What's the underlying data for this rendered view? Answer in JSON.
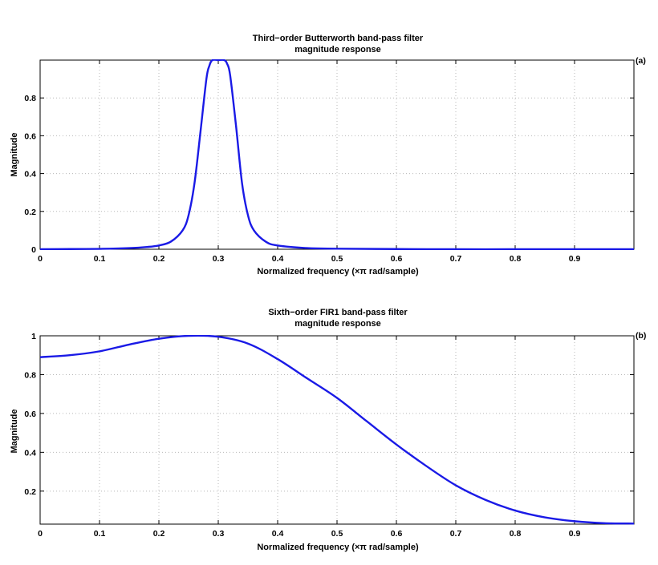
{
  "chart_data": [
    {
      "type": "line",
      "title_lines": [
        "Third−order Butterworth band-pass filter",
        "magnitude response"
      ],
      "tag": "(a)",
      "xlabel": "Normalized frequency  (×π rad/sample)",
      "ylabel": "Magnitude",
      "xlim": [
        0,
        1
      ],
      "ylim": [
        0,
        1
      ],
      "xticks": [
        0,
        0.1,
        0.2,
        0.3,
        0.4,
        0.5,
        0.6,
        0.7,
        0.8,
        0.9
      ],
      "xtick_labels": [
        "0",
        "0.1",
        "0.2",
        "0.3",
        "0.4",
        "0.5",
        "0.6",
        "0.7",
        "0.8",
        "0.9"
      ],
      "yticks": [
        0,
        0.2,
        0.4,
        0.6,
        0.8
      ],
      "ytick_labels": [
        "0",
        "0.2",
        "0.4",
        "0.6",
        "0.8"
      ],
      "grid": true,
      "line_color": "#1a1ae6",
      "series": [
        {
          "x": [
            0,
            0.05,
            0.1,
            0.15,
            0.18,
            0.2,
            0.22,
            0.24,
            0.25,
            0.26,
            0.27,
            0.28,
            0.285,
            0.29,
            0.3,
            0.31,
            0.315,
            0.32,
            0.33,
            0.34,
            0.35,
            0.36,
            0.38,
            0.4,
            0.45,
            0.5,
            0.6,
            0.7,
            0.8,
            0.9,
            1.0
          ],
          "values": [
            0,
            0.001,
            0.002,
            0.006,
            0.012,
            0.02,
            0.04,
            0.1,
            0.18,
            0.35,
            0.62,
            0.9,
            0.97,
            1.0,
            1.0,
            1.0,
            0.98,
            0.92,
            0.65,
            0.35,
            0.18,
            0.1,
            0.04,
            0.02,
            0.006,
            0.003,
            0.001,
            0,
            0,
            0,
            0
          ]
        }
      ]
    },
    {
      "type": "line",
      "title_lines": [
        "Sixth−order FIR1 band-pass filter",
        "magnitude response"
      ],
      "tag": "(b)",
      "xlabel": "Normalized frequency  (×π rad/sample)",
      "ylabel": "Magnitude",
      "xlim": [
        0,
        1
      ],
      "ylim": [
        0.03,
        1
      ],
      "xticks": [
        0,
        0.1,
        0.2,
        0.3,
        0.4,
        0.5,
        0.6,
        0.7,
        0.8,
        0.9
      ],
      "xtick_labels": [
        "0",
        "0.1",
        "0.2",
        "0.3",
        "0.4",
        "0.5",
        "0.6",
        "0.7",
        "0.8",
        "0.9"
      ],
      "yticks": [
        0.2,
        0.4,
        0.6,
        0.8,
        1
      ],
      "ytick_labels": [
        "0.2",
        "0.4",
        "0.6",
        "0.8",
        "1"
      ],
      "grid": true,
      "line_color": "#1a1ae6",
      "series": [
        {
          "x": [
            0,
            0.05,
            0.1,
            0.15,
            0.2,
            0.25,
            0.3,
            0.35,
            0.4,
            0.45,
            0.5,
            0.55,
            0.6,
            0.65,
            0.7,
            0.75,
            0.8,
            0.85,
            0.9,
            0.95,
            1.0
          ],
          "values": [
            0.89,
            0.9,
            0.92,
            0.955,
            0.985,
            1.0,
            0.995,
            0.96,
            0.88,
            0.78,
            0.68,
            0.56,
            0.44,
            0.33,
            0.23,
            0.155,
            0.1,
            0.065,
            0.045,
            0.035,
            0.033
          ]
        }
      ]
    }
  ]
}
